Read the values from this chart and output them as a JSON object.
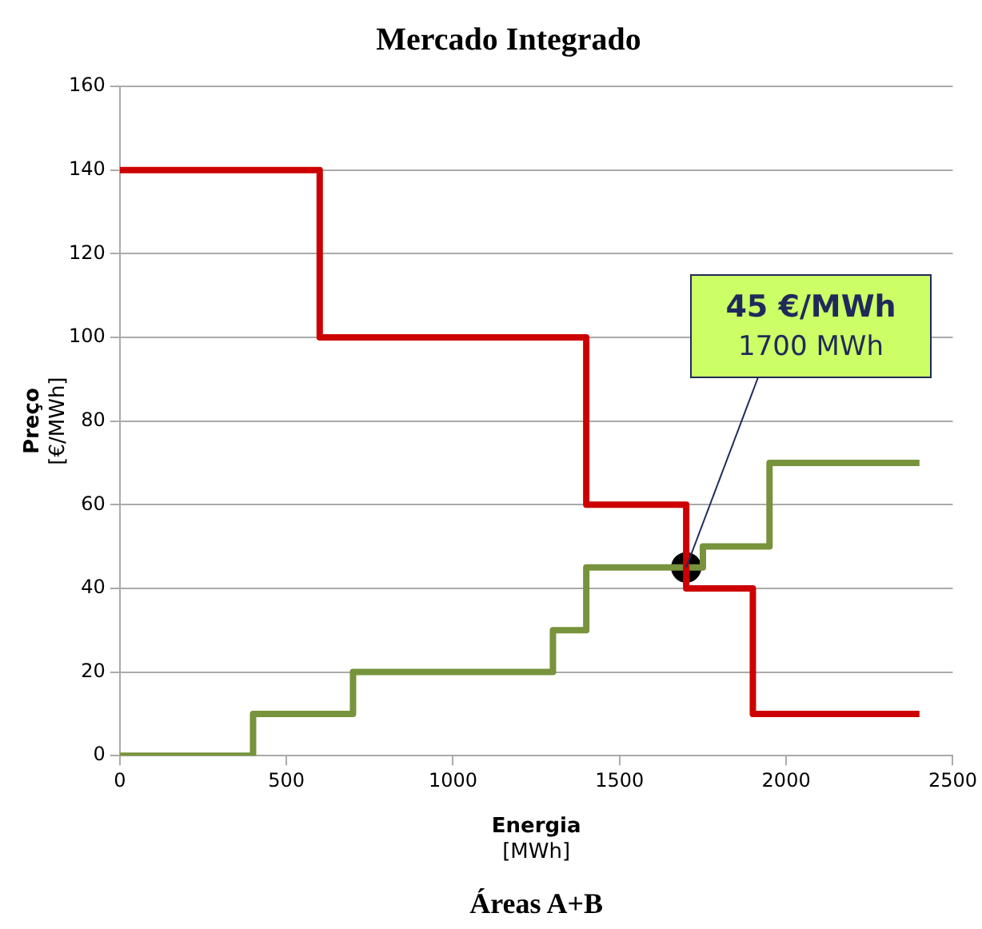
{
  "chart_data": {
    "type": "step",
    "title": "Mercado Integrado",
    "xlabel": "Energia\n[MWh]",
    "ylabel": "Preço\n[€/MWh]",
    "xlim": [
      0,
      2500
    ],
    "xticks": [
      0,
      500,
      1000,
      1500,
      2000,
      2500
    ],
    "ylim": [
      0,
      160
    ],
    "yticks": [
      0,
      20,
      40,
      60,
      80,
      100,
      120,
      140,
      160
    ],
    "grid": "y",
    "legend": false,
    "series": [
      {
        "color": "#cc0000",
        "x": [
          0,
          600,
          1400,
          1700,
          1900,
          2400
        ],
        "values": [
          140,
          100,
          60,
          40,
          10,
          10
        ]
      },
      {
        "color": "#77933c",
        "x": [
          0,
          400,
          700,
          1300,
          1400,
          1750,
          1950,
          2400
        ],
        "values": [
          0,
          10,
          20,
          30,
          45,
          50,
          70,
          70
        ]
      },
      {
        "type": "scatter",
        "color": "#000000",
        "x": [
          1700
        ],
        "values": [
          45
        ],
        "marker": "circle"
      }
    ],
    "annotations": [
      "45 €/MWh",
      {
        "text": "1700 MWh",
        "x": 1700,
        "y": 45
      },
      "Áreas A+B"
    ]
  }
}
